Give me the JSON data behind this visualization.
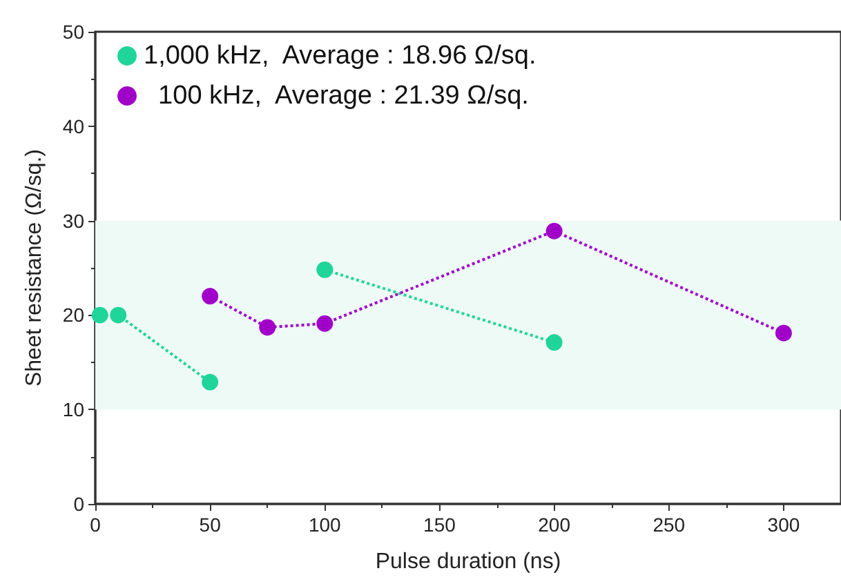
{
  "chart_data": {
    "type": "line",
    "xlabel": "Pulse duration (ns)",
    "ylabel": "Sheet resistance (Ω/sq.)",
    "series": [
      {
        "name": "1,000 kHz,  Average : 18.96 Ω/sq.",
        "color": "#1fd59a",
        "x": [
          2,
          10,
          50,
          75,
          100,
          200
        ],
        "values": [
          20,
          20,
          12.9,
          null,
          24.8,
          17.1
        ]
      },
      {
        "name": "  100 kHz,  Average : 21.39 Ω/sq.",
        "color": "#a000c8",
        "x": [
          50,
          75,
          100,
          200,
          300
        ],
        "values": [
          22,
          18.7,
          19.1,
          28.9,
          18.1
        ]
      }
    ],
    "xlim": [
      0,
      325
    ],
    "xticks": [
      0,
      50,
      100,
      150,
      200,
      250,
      300
    ],
    "ylim": [
      0,
      50
    ],
    "yticks": [
      0,
      10,
      20,
      30,
      40,
      50
    ],
    "bands": [
      {
        "axis": "y",
        "from": 10,
        "to": 30,
        "color": "#eefaf6"
      }
    ],
    "grid": false,
    "legend": "top left",
    "marker": "circle",
    "line_style": "dotted"
  }
}
